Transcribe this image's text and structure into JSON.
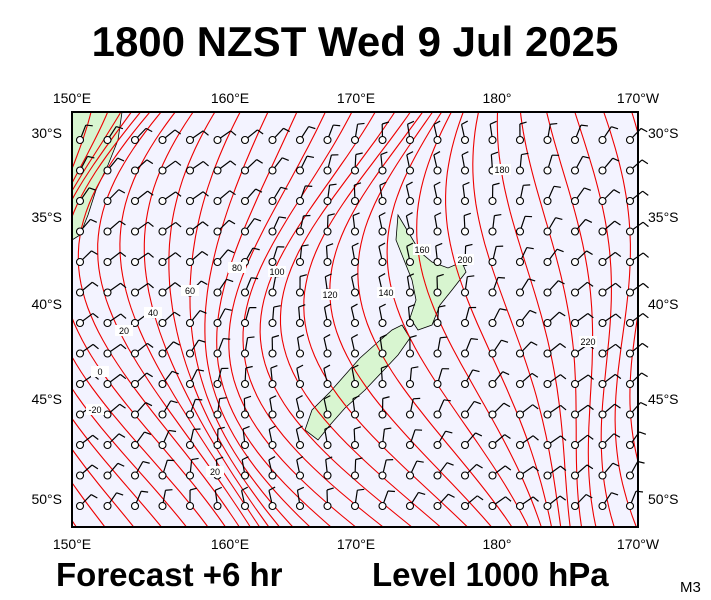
{
  "header": {
    "title": "1800 NZST Wed 9 Jul 2025"
  },
  "axes": {
    "longitudes": [
      "150°E",
      "160°E",
      "170°E",
      "180°",
      "170°W"
    ],
    "latitudes": [
      "30°S",
      "35°S",
      "40°S",
      "45°S",
      "50°S"
    ]
  },
  "contour_labels": [
    "180",
    "200",
    "160",
    "140",
    "120",
    "100",
    "80",
    "60",
    "40",
    "20",
    "0",
    "-20",
    "20",
    "220"
  ],
  "footer": {
    "forecast": "Forecast +6 hr",
    "level": "Level 1000 hPa",
    "code": "M3"
  }
}
